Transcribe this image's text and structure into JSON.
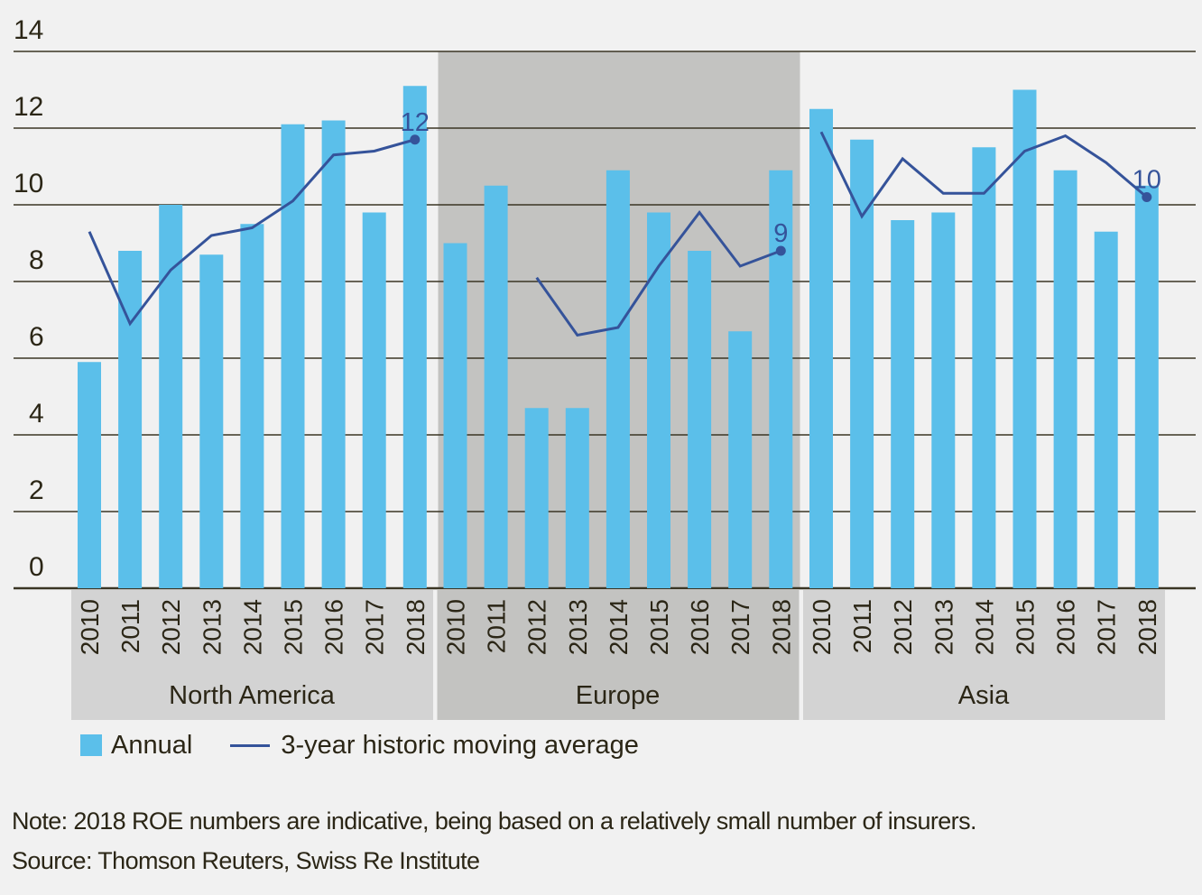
{
  "chart_data": {
    "type": "bar",
    "title": "",
    "xlabel": "",
    "ylabel": "",
    "ylim": [
      0,
      14
    ],
    "yticks": [
      0,
      2,
      4,
      6,
      8,
      10,
      12,
      14
    ],
    "grid": true,
    "legend_position": "bottom-left",
    "groups": [
      {
        "name": "North America",
        "categories": [
          "2010",
          "2011",
          "2012",
          "2013",
          "2014",
          "2015",
          "2016",
          "2017",
          "2018"
        ],
        "annual": [
          5.9,
          8.8,
          10.0,
          8.7,
          9.5,
          12.1,
          12.2,
          9.8,
          13.1
        ],
        "moving_average": [
          9.3,
          6.9,
          8.3,
          9.2,
          9.4,
          10.1,
          11.3,
          11.4,
          11.7
        ],
        "end_label": "12",
        "shaded": false
      },
      {
        "name": "Europe",
        "categories": [
          "2010",
          "2011",
          "2012",
          "2013",
          "2014",
          "2015",
          "2016",
          "2017",
          "2018"
        ],
        "annual": [
          9.0,
          10.5,
          4.7,
          4.7,
          10.9,
          9.8,
          8.8,
          6.7,
          10.9
        ],
        "moving_average": [
          null,
          null,
          8.1,
          6.6,
          6.8,
          8.4,
          9.8,
          8.4,
          8.8
        ],
        "end_label": "9",
        "shaded": true
      },
      {
        "name": "Asia",
        "categories": [
          "2010",
          "2011",
          "2012",
          "2013",
          "2014",
          "2015",
          "2016",
          "2017",
          "2018"
        ],
        "annual": [
          12.5,
          11.7,
          9.6,
          9.8,
          11.5,
          13.0,
          10.9,
          9.3,
          10.5
        ],
        "moving_average": [
          11.9,
          9.7,
          11.2,
          10.3,
          10.3,
          11.4,
          11.8,
          11.1,
          10.2
        ],
        "end_label": "10",
        "shaded": false
      }
    ],
    "series": [
      {
        "name": "Annual",
        "type": "bar",
        "color": "#5bbfea"
      },
      {
        "name": "3-year historic moving average",
        "type": "line",
        "color": "#35539a"
      }
    ]
  },
  "legend": {
    "annual_label": "Annual",
    "moving_average_label": "3-year historic moving average"
  },
  "notes": {
    "note": "Note: 2018 ROE numbers are indicative, being based on a relatively small number of insurers.",
    "source": "Source: Thomson Reuters, Swiss Re Institute"
  },
  "colors": {
    "bar": "#5bbfea",
    "line": "#35539a",
    "background": "#f1f1f1",
    "shaded_band": "#c3c3c1",
    "category_band": "#d3d3d3",
    "text": "#2b2616",
    "grid": "#3a3524"
  }
}
